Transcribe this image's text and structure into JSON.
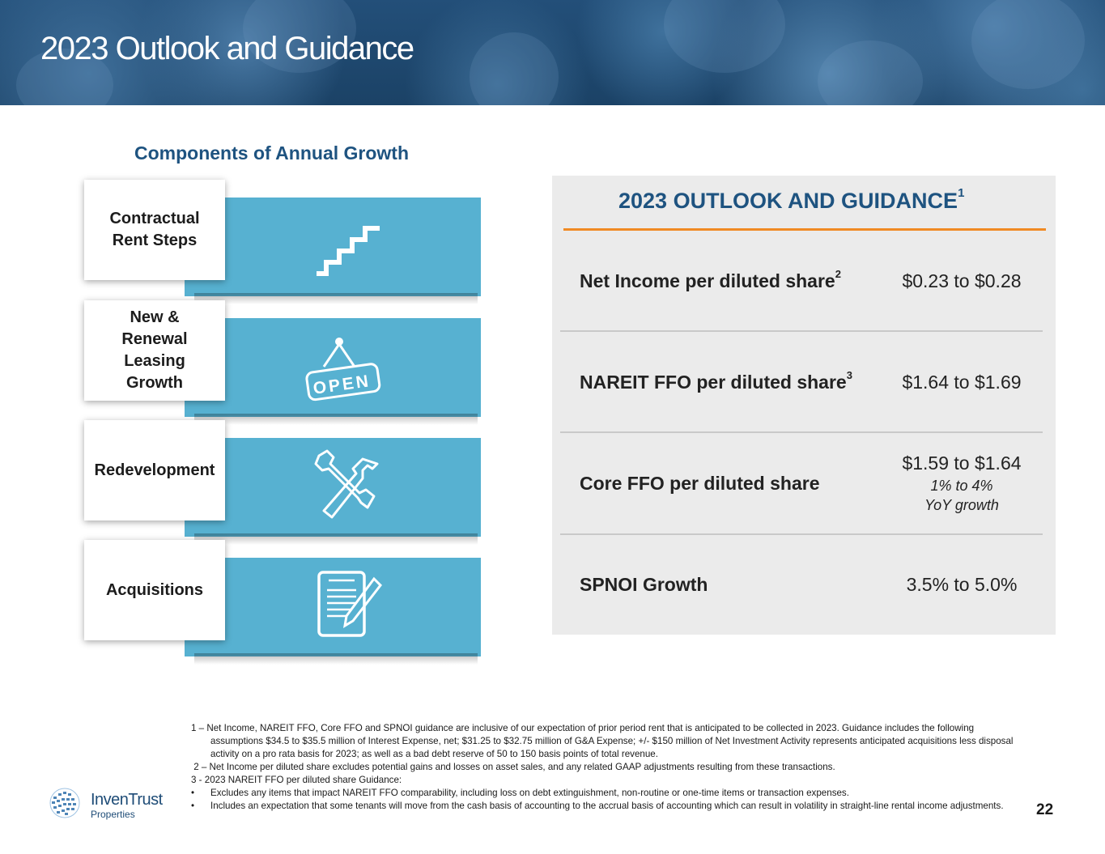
{
  "header": {
    "title": "2023 Outlook and Guidance"
  },
  "components": {
    "title": "Components of Annual Growth",
    "items": [
      {
        "label": "Contractual\nRent Steps",
        "icon": "stairs-icon"
      },
      {
        "label": "New &\nRenewal\nLeasing\nGrowth",
        "icon": "open-sign-icon",
        "icon_text": "OPEN"
      },
      {
        "label": "Redevelopment",
        "icon": "tools-icon"
      },
      {
        "label": "Acquisitions",
        "icon": "document-pen-icon"
      }
    ]
  },
  "guidance": {
    "title": "2023 OUTLOOK AND GUIDANCE",
    "title_sup": "1",
    "rows": [
      {
        "label": "Net Income per diluted share",
        "sup": "2",
        "value": "$0.23 to $0.28"
      },
      {
        "label": "NAREIT FFO per diluted share",
        "sup": "3",
        "value": "$1.64 to $1.69"
      },
      {
        "label": "Core FFO per diluted share",
        "sup": "",
        "value": "$1.59 to $1.64",
        "sub1": "1% to 4%",
        "sub2": "YoY growth"
      },
      {
        "label": "SPNOI Growth",
        "sup": "",
        "value": "3.5% to 5.0%"
      }
    ]
  },
  "footnotes": [
    "1 – Net Income, NAREIT FFO, Core FFO and SPNOI guidance are inclusive of our expectation of prior period rent that is anticipated to be collected in 2023. Guidance includes the following assumptions $34.5 to $35.5 million of Interest Expense, net; $31.25 to $32.75 million of G&A Expense; +/- $150 million of Net Investment Activity represents anticipated acquisitions less disposal activity on a pro rata basis for 2023; as well as a bad debt reserve of 50 to 150 basis points of total revenue.",
    " 2 – Net Income per diluted share excludes potential gains and losses on asset sales, and any related GAAP adjustments resulting from these transactions.",
    "3 - 2023 NAREIT FFO per diluted share Guidance:",
    "Excludes any items that impact NAREIT FFO comparability, including loss on debt extinguishment, non-routine or one-time items or transaction expenses.",
    "Includes an expectation that some tenants will move from the cash basis of accounting to the accrual basis of accounting which can result in volatility in straight-line rental income adjustments."
  ],
  "logo": {
    "name": "InvenTrust",
    "sub": "Properties"
  },
  "page_number": "22",
  "colors": {
    "navy": "#1e5380",
    "teal": "#57b1d1",
    "orange": "#f08a24",
    "panel": "#ebebeb"
  }
}
